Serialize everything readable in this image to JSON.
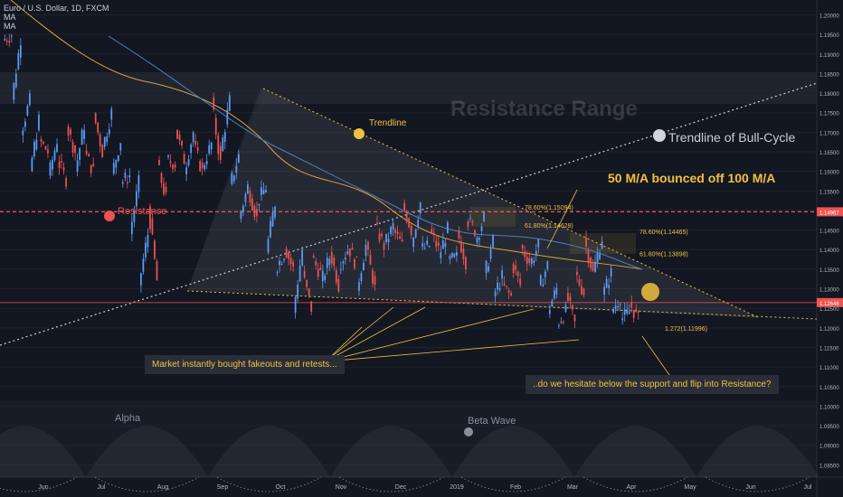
{
  "header": {
    "symbol": "Euro / U.S. Dollar, 1D, FXCM",
    "ma_labels": [
      "MA",
      "MA"
    ]
  },
  "colors": {
    "background": "#131722",
    "candle_up": "#5b9cf6",
    "candle_down": "#ef5350",
    "resistance": "#ef5350",
    "ma_fast": "#d9a33a",
    "ma_slow": "#4a7fc1",
    "annotation": "#f0c040",
    "trendline_dots": "#c9cdd6"
  },
  "annotations": {
    "resistance_range": "Resistance Range",
    "trendline": "Trendline",
    "trendline_bull": "Trendline of Bull-Cycle",
    "ma_note": "50 M/A bounced off 100 M/A",
    "resistance": "Resistance",
    "fakeouts": "Market instantly bought fakeouts and retests...",
    "question": "..do we hesitate below the support and flip into Resistance?",
    "alpha": "Alpha",
    "beta": "Beta Wave"
  },
  "chart_data": {
    "type": "candlestick",
    "title": "Euro / U.S. Dollar, 1D, FXCM",
    "x_labels": [
      "Jun",
      "Jul",
      "Aug",
      "Sep",
      "Oct",
      "Nov",
      "Dec",
      "2019",
      "Feb",
      "Mar",
      "Apr",
      "May",
      "Jun",
      "Jul"
    ],
    "y_ticks": [
      "1.20000",
      "1.19500",
      "1.19000",
      "1.18500",
      "1.18000",
      "1.17500",
      "1.17000",
      "1.16500",
      "1.16000",
      "1.15500",
      "1.15000",
      "1.14500",
      "1.14000",
      "1.13500",
      "1.13000",
      "1.12500",
      "1.12000",
      "1.11500",
      "1.11000",
      "1.10500",
      "1.10000",
      "1.09500",
      "1.09000",
      "1.08500"
    ],
    "ylim": [
      1.083,
      1.2015
    ],
    "resistance_level": 1.14967,
    "last_price": 1.12646,
    "fib_labels": [
      {
        "text": "78.60%(1.15094)",
        "value": 1.15094
      },
      {
        "text": "61.80%(1.14628)",
        "value": 1.14628
      },
      {
        "text": "78.60%(1.14465)",
        "value": 1.14465
      },
      {
        "text": "61.80%(1.13898)",
        "value": 1.13898
      },
      {
        "text": "1.272(1.11996)",
        "value": 1.11996
      }
    ],
    "price_path": [
      [
        1.1935,
        1.195
      ],
      [
        1.178,
        1.194
      ],
      [
        1.17,
        1.178
      ],
      [
        1.16,
        1.173
      ],
      [
        1.168,
        1.165
      ],
      [
        1.158,
        1.168
      ],
      [
        1.163,
        1.158
      ],
      [
        1.172,
        1.165
      ],
      [
        1.16,
        1.172
      ],
      [
        1.165,
        1.16
      ],
      [
        1.175,
        1.165
      ],
      [
        1.166,
        1.175
      ],
      [
        1.159,
        1.168
      ],
      [
        1.157,
        1.159
      ],
      [
        1.144,
        1.157
      ],
      [
        1.131,
        1.144
      ],
      [
        1.152,
        1.132
      ],
      [
        1.162,
        1.153
      ],
      [
        1.163,
        1.162
      ],
      [
        1.171,
        1.163
      ],
      [
        1.16,
        1.17
      ],
      [
        1.167,
        1.16
      ],
      [
        1.161,
        1.167
      ],
      [
        1.178,
        1.162
      ],
      [
        1.165,
        1.178
      ],
      [
        1.156,
        1.164
      ],
      [
        1.148,
        1.156
      ],
      [
        1.156,
        1.148
      ],
      [
        1.152,
        1.156
      ],
      [
        1.139,
        1.152
      ],
      [
        1.135,
        1.139
      ],
      [
        1.141,
        1.135
      ],
      [
        1.124,
        1.14
      ],
      [
        1.134,
        1.125
      ],
      [
        1.138,
        1.134
      ],
      [
        1.131,
        1.138
      ],
      [
        1.14,
        1.131
      ],
      [
        1.136,
        1.14
      ],
      [
        1.141,
        1.136
      ],
      [
        1.13,
        1.141
      ],
      [
        1.141,
        1.13
      ],
      [
        1.146,
        1.141
      ],
      [
        1.141,
        1.146
      ],
      [
        1.145,
        1.141
      ],
      [
        1.152,
        1.145
      ],
      [
        1.141,
        1.152
      ],
      [
        1.14,
        1.141
      ],
      [
        1.145,
        1.14
      ],
      [
        1.138,
        1.145
      ],
      [
        1.137,
        1.138
      ],
      [
        1.145,
        1.137
      ],
      [
        1.148,
        1.145
      ],
      [
        1.142,
        1.148
      ],
      [
        1.133,
        1.142
      ],
      [
        1.128,
        1.133
      ],
      [
        1.131,
        1.128
      ],
      [
        1.137,
        1.131
      ],
      [
        1.141,
        1.137
      ],
      [
        1.136,
        1.141
      ],
      [
        1.13,
        1.136
      ],
      [
        1.124,
        1.13
      ],
      [
        1.121,
        1.124
      ],
      [
        1.129,
        1.121
      ],
      [
        1.134,
        1.129
      ],
      [
        1.143,
        1.134
      ],
      [
        1.134,
        1.143
      ],
      [
        1.128,
        1.134
      ],
      [
        1.124,
        1.128
      ],
      [
        1.122,
        1.124
      ],
      [
        1.1265,
        1.122
      ]
    ]
  }
}
